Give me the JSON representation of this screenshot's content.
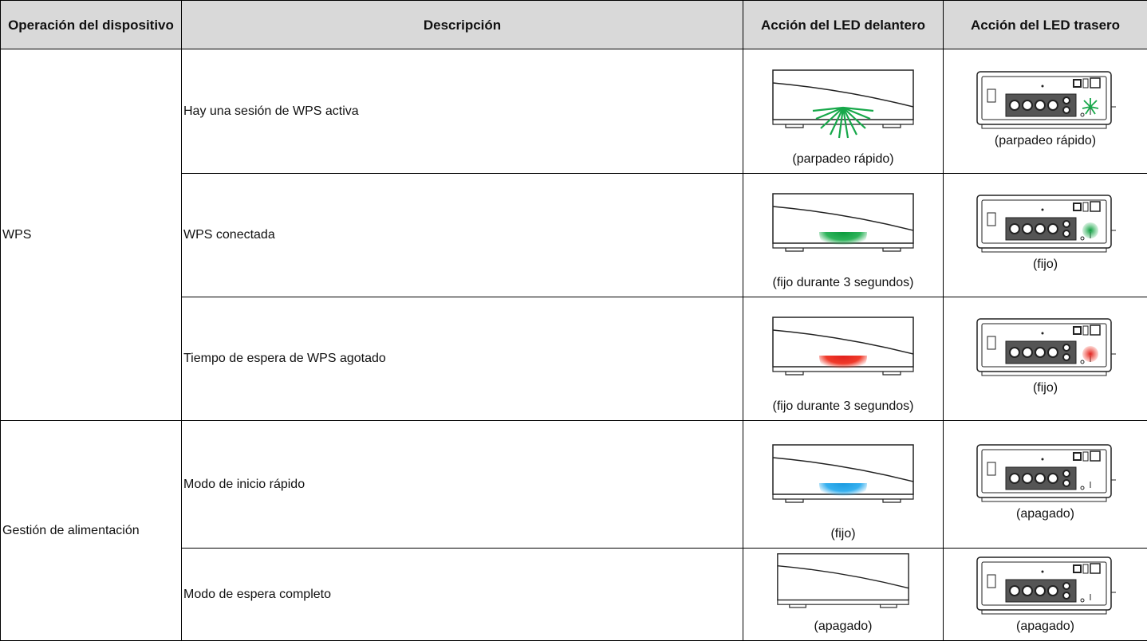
{
  "header": {
    "columns": [
      "Operación del dispositivo",
      "Descripción",
      "Acción del LED delantero",
      "Acción del LED trasero"
    ]
  },
  "table": {
    "groups": [
      {
        "operation": "WPS",
        "rows": [
          {
            "description": "Hay una sesión de WPS activa",
            "front": "(parpadeo rápido)",
            "rear": "(parpadeo rápido)"
          },
          {
            "description": "WPS conectada",
            "front": "(fijo durante 3 segundos)",
            "rear": "(fijo)"
          },
          {
            "description": "Tiempo de espera de WPS agotado",
            "front": "(fijo durante 3 segundos)",
            "rear": "(fijo)"
          }
        ]
      },
      {
        "operation": "Gestión de alimentación",
        "rows": [
          {
            "description": "Modo de inicio rápido",
            "front": "(fijo)",
            "rear": "(apagado)"
          },
          {
            "description": "Modo de espera completo",
            "front": "(apagado)",
            "rear": "(apagado)"
          }
        ]
      }
    ]
  }
}
